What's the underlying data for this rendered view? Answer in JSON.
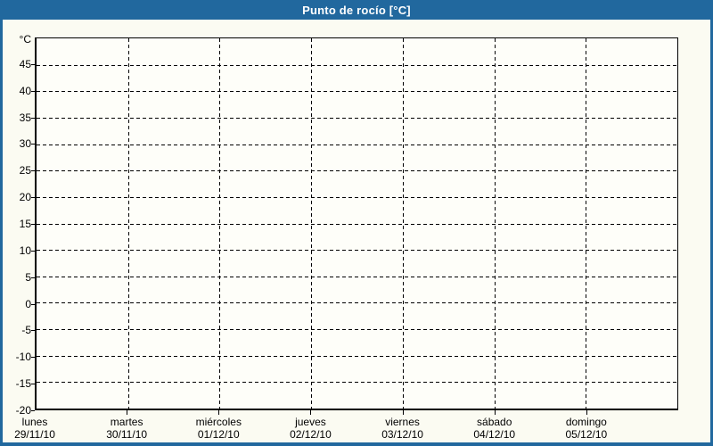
{
  "window": {
    "title": "Punto de rocío [°C]"
  },
  "colors": {
    "header_bg": "#21689e",
    "frame_border": "#21689e",
    "canvas_bg": "#fbfbf2",
    "plot_bg": "#fefef9",
    "grid_color": "#000000",
    "title_text": "#ffffff",
    "label_text": "#000000"
  },
  "chart_data": {
    "type": "line",
    "title": "Punto de rocío [°C]",
    "ylabel": "°C",
    "xlabel": "",
    "ylim": [
      -20,
      50
    ],
    "yticks": [
      45,
      40,
      35,
      30,
      25,
      20,
      15,
      10,
      5,
      0,
      -5,
      -10,
      -15,
      -20
    ],
    "ytick_step": 5,
    "grid": "dashed horizontal and vertical",
    "legend_position": "none",
    "categories": [
      {
        "weekday": "lunes",
        "date": "29/11/10"
      },
      {
        "weekday": "martes",
        "date": "30/11/10"
      },
      {
        "weekday": "miércoles",
        "date": "01/12/10"
      },
      {
        "weekday": "jueves",
        "date": "02/12/10"
      },
      {
        "weekday": "viernes",
        "date": "03/12/10"
      },
      {
        "weekday": "sábado",
        "date": "04/12/10"
      },
      {
        "weekday": "domingo",
        "date": "05/12/10"
      }
    ],
    "series": []
  }
}
